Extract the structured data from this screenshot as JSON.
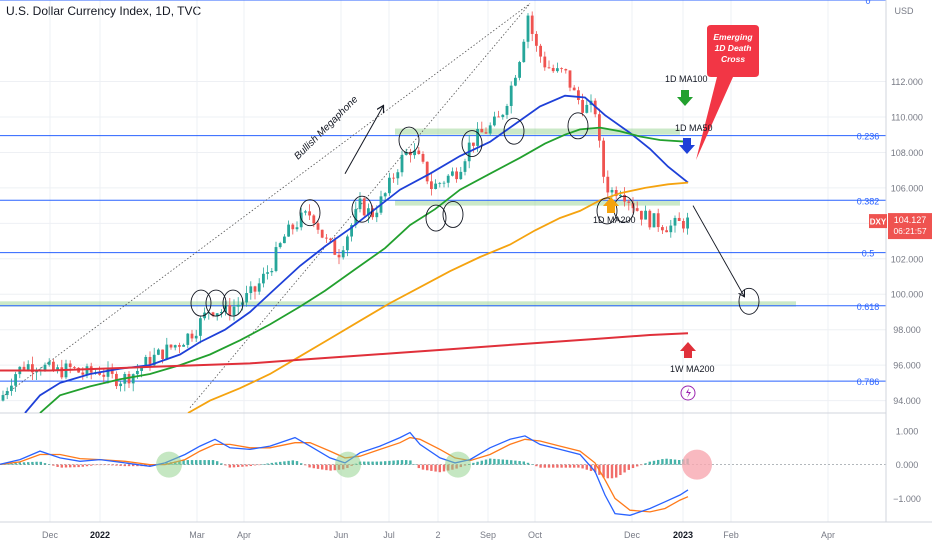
{
  "header": {
    "title": "U.S. Dollar Currency Index, 1D, TVC",
    "currency": "USD"
  },
  "price_tag": {
    "symbol": "DXY",
    "price": "104.127",
    "countdown": "06:21:57",
    "price_value": 104.127
  },
  "colors": {
    "fib": "#2962ff",
    "candle_up": "#26a69a",
    "candle_down": "#ef5350",
    "ma50": "#1e40d8",
    "ma100": "#22a02e",
    "ma200": "#f5a30f",
    "w_ma200": "#e0303a",
    "macd": "#2962ff",
    "signal": "#ff7a1a",
    "callout": "#f23645",
    "zone": "#8bcf86",
    "paleRed": "#f7a8b0",
    "purple": "#9c27b0"
  },
  "chart_data": {
    "type": "candlestick",
    "x_ticks": [
      "Dec",
      "2022",
      "Mar",
      "Apr",
      "Jun",
      "Jul",
      "2",
      "Sep",
      "Oct",
      "Dec",
      "2023",
      "Feb",
      "Apr"
    ],
    "y_ticks": [
      112.0,
      110.0,
      108.0,
      106.0,
      104.0,
      102.0,
      100.0,
      98.0,
      96.0,
      94.0
    ],
    "ylim": [
      93.3,
      116.6
    ],
    "fib_levels": [
      {
        "label": "0",
        "value": 116.6
      },
      {
        "label": "0.236",
        "value": 108.95
      },
      {
        "label": "0.382",
        "value": 105.3
      },
      {
        "label": "0.5",
        "value": 102.35
      },
      {
        "label": "0.618",
        "value": 99.35
      },
      {
        "label": "0.786",
        "value": 95.1
      }
    ],
    "zones": [
      {
        "from": 109.0,
        "to": 109.35
      },
      {
        "from": 105.0,
        "to": 105.3
      },
      {
        "from": 99.3,
        "to": 99.6
      }
    ],
    "price_path": [
      [
        0,
        94.0
      ],
      [
        14,
        95.5
      ],
      [
        25,
        96.0
      ],
      [
        40,
        96.0
      ],
      [
        55,
        95.6
      ],
      [
        70,
        95.8
      ],
      [
        85,
        95.5
      ],
      [
        100,
        95.7
      ],
      [
        110,
        95.3
      ],
      [
        122,
        95.2
      ],
      [
        135,
        95.6
      ],
      [
        150,
        96.3
      ],
      [
        165,
        96.8
      ],
      [
        180,
        97.3
      ],
      [
        195,
        98.0
      ],
      [
        210,
        99.2
      ],
      [
        225,
        99.0
      ],
      [
        240,
        99.5
      ],
      [
        255,
        100.2
      ],
      [
        270,
        101.5
      ],
      [
        285,
        103.3
      ],
      [
        300,
        104.2
      ],
      [
        312,
        104.6
      ],
      [
        325,
        103.0
      ],
      [
        338,
        102.3
      ],
      [
        350,
        103.7
      ],
      [
        360,
        105.0
      ],
      [
        372,
        104.5
      ],
      [
        385,
        105.6
      ],
      [
        400,
        107.5
      ],
      [
        410,
        108.2
      ],
      [
        420,
        107.5
      ],
      [
        432,
        106.0
      ],
      [
        445,
        106.5
      ],
      [
        458,
        107.0
      ],
      [
        470,
        108.5
      ],
      [
        480,
        109.0
      ],
      [
        490,
        109.4
      ],
      [
        500,
        109.9
      ],
      [
        510,
        111.5
      ],
      [
        520,
        113.5
      ],
      [
        528,
        115.8
      ],
      [
        535,
        114.0
      ],
      [
        545,
        113.0
      ],
      [
        555,
        112.5
      ],
      [
        565,
        112.5
      ],
      [
        575,
        111.2
      ],
      [
        585,
        110.5
      ],
      [
        595,
        110.5
      ],
      [
        600,
        108.0
      ],
      [
        605,
        106.2
      ],
      [
        612,
        105.8
      ],
      [
        620,
        106.0
      ],
      [
        630,
        105.3
      ],
      [
        640,
        104.6
      ],
      [
        650,
        104.2
      ],
      [
        660,
        104.0
      ],
      [
        670,
        103.8
      ],
      [
        680,
        104.0
      ],
      [
        688,
        104.1
      ]
    ],
    "macd_path": [
      [
        0,
        0.01
      ],
      [
        20,
        0.15
      ],
      [
        40,
        0.4
      ],
      [
        60,
        0.2
      ],
      [
        80,
        0.1
      ],
      [
        100,
        0.15
      ],
      [
        125,
        0.05
      ],
      [
        150,
        -0.05
      ],
      [
        165,
        0.05
      ],
      [
        185,
        0.3
      ],
      [
        200,
        0.55
      ],
      [
        215,
        0.75
      ],
      [
        230,
        0.5
      ],
      [
        250,
        0.45
      ],
      [
        270,
        0.55
      ],
      [
        295,
        0.8
      ],
      [
        310,
        0.55
      ],
      [
        330,
        0.2
      ],
      [
        345,
        0.05
      ],
      [
        360,
        0.35
      ],
      [
        380,
        0.55
      ],
      [
        400,
        0.8
      ],
      [
        410,
        0.95
      ],
      [
        420,
        0.6
      ],
      [
        440,
        0.2
      ],
      [
        455,
        0.05
      ],
      [
        470,
        0.15
      ],
      [
        490,
        0.5
      ],
      [
        510,
        0.75
      ],
      [
        525,
        0.85
      ],
      [
        540,
        0.6
      ],
      [
        560,
        0.45
      ],
      [
        580,
        0.3
      ],
      [
        595,
        -0.2
      ],
      [
        605,
        -0.9
      ],
      [
        615,
        -1.45
      ],
      [
        630,
        -1.5
      ],
      [
        650,
        -1.3
      ],
      [
        665,
        -1.1
      ],
      [
        680,
        -0.9
      ],
      [
        688,
        -0.75
      ]
    ],
    "signal_path": [
      [
        0,
        0.01
      ],
      [
        20,
        0.08
      ],
      [
        40,
        0.3
      ],
      [
        60,
        0.3
      ],
      [
        80,
        0.18
      ],
      [
        100,
        0.15
      ],
      [
        125,
        0.1
      ],
      [
        150,
        0.0
      ],
      [
        165,
        0.0
      ],
      [
        185,
        0.15
      ],
      [
        200,
        0.4
      ],
      [
        215,
        0.6
      ],
      [
        230,
        0.6
      ],
      [
        250,
        0.5
      ],
      [
        270,
        0.5
      ],
      [
        295,
        0.65
      ],
      [
        310,
        0.65
      ],
      [
        330,
        0.4
      ],
      [
        345,
        0.2
      ],
      [
        360,
        0.25
      ],
      [
        380,
        0.45
      ],
      [
        400,
        0.65
      ],
      [
        410,
        0.8
      ],
      [
        420,
        0.75
      ],
      [
        440,
        0.45
      ],
      [
        455,
        0.2
      ],
      [
        470,
        0.12
      ],
      [
        490,
        0.3
      ],
      [
        510,
        0.6
      ],
      [
        525,
        0.75
      ],
      [
        540,
        0.7
      ],
      [
        560,
        0.55
      ],
      [
        580,
        0.4
      ],
      [
        595,
        0.05
      ],
      [
        605,
        -0.45
      ],
      [
        615,
        -1.0
      ],
      [
        630,
        -1.35
      ],
      [
        650,
        -1.4
      ],
      [
        665,
        -1.3
      ],
      [
        680,
        -1.05
      ],
      [
        688,
        -0.95
      ]
    ],
    "macd_ticks": [
      1.0,
      0.0,
      -1.0
    ],
    "macd_ylim": [
      -1.7,
      1.5
    ],
    "ma_lines": [
      {
        "name": "1D MA50",
        "color_key": "ma50",
        "points": [
          [
            25,
            93.3
          ],
          [
            40,
            94.3
          ],
          [
            60,
            95.0
          ],
          [
            90,
            95.5
          ],
          [
            120,
            95.8
          ],
          [
            150,
            96.0
          ],
          [
            180,
            96.6
          ],
          [
            200,
            97.3
          ],
          [
            225,
            98.0
          ],
          [
            250,
            99.0
          ],
          [
            275,
            100.3
          ],
          [
            300,
            101.6
          ],
          [
            325,
            102.7
          ],
          [
            350,
            103.7
          ],
          [
            375,
            104.8
          ],
          [
            400,
            105.9
          ],
          [
            430,
            106.8
          ],
          [
            460,
            107.8
          ],
          [
            490,
            108.6
          ],
          [
            515,
            109.6
          ],
          [
            540,
            110.6
          ],
          [
            565,
            111.2
          ],
          [
            585,
            111.1
          ],
          [
            605,
            110.1
          ],
          [
            630,
            109.1
          ],
          [
            650,
            108.2
          ],
          [
            668,
            107.2
          ],
          [
            688,
            106.3
          ]
        ]
      },
      {
        "name": "1D MA100",
        "color_key": "ma100",
        "points": [
          [
            40,
            93.3
          ],
          [
            60,
            94.3
          ],
          [
            90,
            94.8
          ],
          [
            120,
            95.2
          ],
          [
            150,
            95.5
          ],
          [
            180,
            96.0
          ],
          [
            210,
            96.6
          ],
          [
            240,
            97.4
          ],
          [
            270,
            98.3
          ],
          [
            300,
            99.3
          ],
          [
            325,
            100.2
          ],
          [
            355,
            101.4
          ],
          [
            385,
            102.6
          ],
          [
            410,
            103.9
          ],
          [
            435,
            104.8
          ],
          [
            460,
            105.9
          ],
          [
            490,
            106.8
          ],
          [
            520,
            107.7
          ],
          [
            545,
            108.5
          ],
          [
            565,
            109.0
          ],
          [
            580,
            109.3
          ],
          [
            600,
            109.4
          ],
          [
            620,
            109.2
          ],
          [
            640,
            108.9
          ],
          [
            660,
            108.7
          ],
          [
            688,
            108.6
          ]
        ]
      },
      {
        "name": "1D MA200",
        "color_key": "ma200",
        "points": [
          [
            188,
            93.3
          ],
          [
            210,
            94.0
          ],
          [
            240,
            94.7
          ],
          [
            270,
            95.5
          ],
          [
            300,
            96.5
          ],
          [
            330,
            97.5
          ],
          [
            360,
            98.5
          ],
          [
            390,
            99.5
          ],
          [
            420,
            100.4
          ],
          [
            450,
            101.3
          ],
          [
            480,
            102.1
          ],
          [
            510,
            102.8
          ],
          [
            535,
            103.6
          ],
          [
            560,
            104.3
          ],
          [
            580,
            104.7
          ],
          [
            600,
            105.3
          ],
          [
            620,
            105.7
          ],
          [
            645,
            106.0
          ],
          [
            668,
            106.2
          ],
          [
            688,
            106.3
          ]
        ]
      },
      {
        "name": "1W MA200",
        "color_key": "w_ma200",
        "points": [
          [
            0,
            95.7
          ],
          [
            50,
            95.7
          ],
          [
            100,
            95.8
          ],
          [
            150,
            95.9
          ],
          [
            200,
            96.0
          ],
          [
            250,
            96.1
          ],
          [
            300,
            96.3
          ],
          [
            350,
            96.5
          ],
          [
            400,
            96.7
          ],
          [
            450,
            96.9
          ],
          [
            500,
            97.1
          ],
          [
            550,
            97.3
          ],
          [
            600,
            97.5
          ],
          [
            650,
            97.7
          ],
          [
            688,
            97.8
          ]
        ]
      }
    ],
    "annotations": {
      "megaphone": "Bullish Megaphone",
      "callout": [
        "Emerging",
        "1D Death",
        "Cross"
      ],
      "ma100": "1D MA100",
      "ma50": "1D MA50",
      "ma200": "1D MA200",
      "w_ma200": "1W MA200",
      "price_circles": [
        [
          201,
          99.5
        ],
        [
          216,
          99.5
        ],
        [
          233,
          99.5
        ],
        [
          310,
          104.6
        ],
        [
          362,
          104.8
        ],
        [
          409,
          108.7
        ],
        [
          436,
          104.3
        ],
        [
          453,
          104.5
        ],
        [
          472,
          108.5
        ],
        [
          514,
          109.2
        ],
        [
          578,
          109.5
        ],
        [
          607,
          104.7
        ],
        [
          624,
          104.8
        ],
        [
          749,
          99.6
        ]
      ],
      "macd_circles": [
        [
          169,
          0.0
        ],
        [
          348,
          0.0
        ],
        [
          458,
          0.0
        ]
      ],
      "macd_red_circle": [
        697,
        0.0
      ]
    }
  }
}
